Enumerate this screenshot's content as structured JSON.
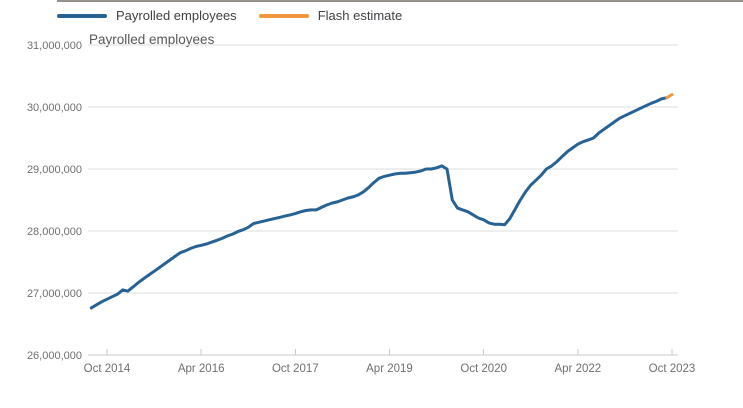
{
  "chart_data": {
    "type": "line",
    "title": "Payrolled employees",
    "x_axis": {
      "start_month": "Jul 2014",
      "tick_labels": [
        "Oct 2014",
        "Apr 2016",
        "Oct 2017",
        "Apr 2019",
        "Oct 2020",
        "Apr 2022",
        "Oct 2023"
      ],
      "tick_indices": [
        3,
        21,
        39,
        57,
        75,
        93,
        111
      ]
    },
    "y_axis": {
      "min": 26000000,
      "max": 31000000,
      "tick_values": [
        26000000,
        27000000,
        28000000,
        29000000,
        30000000,
        31000000
      ],
      "tick_labels": [
        "26,000,000",
        "27,000,000",
        "28,000,000",
        "29,000,000",
        "30,000,000",
        "31,000,000"
      ]
    },
    "grid": "horizontal",
    "legend_position": "top",
    "series": [
      {
        "name": "Payrolled employees",
        "color": "#266294",
        "start_index": 0,
        "values": [
          26760000,
          26810000,
          26860000,
          26900000,
          26940000,
          26980000,
          27050000,
          27030000,
          27100000,
          27170000,
          27230000,
          27290000,
          27350000,
          27410000,
          27470000,
          27530000,
          27590000,
          27650000,
          27680000,
          27720000,
          27750000,
          27770000,
          27790000,
          27820000,
          27850000,
          27880000,
          27920000,
          27950000,
          27990000,
          28020000,
          28060000,
          28120000,
          28140000,
          28160000,
          28180000,
          28200000,
          28220000,
          28240000,
          28260000,
          28280000,
          28310000,
          28330000,
          28340000,
          28340000,
          28380000,
          28420000,
          28450000,
          28470000,
          28500000,
          28530000,
          28550000,
          28580000,
          28630000,
          28700000,
          28780000,
          28850000,
          28880000,
          28900000,
          28920000,
          28930000,
          28930000,
          28940000,
          28950000,
          28970000,
          29000000,
          29000000,
          29020000,
          29050000,
          29000000,
          28500000,
          28370000,
          28340000,
          28310000,
          28260000,
          28210000,
          28180000,
          28130000,
          28110000,
          28110000,
          28100000,
          28200000,
          28350000,
          28500000,
          28630000,
          28740000,
          28820000,
          28900000,
          29000000,
          29050000,
          29120000,
          29200000,
          29280000,
          29340000,
          29400000,
          29440000,
          29470000,
          29500000,
          29580000,
          29640000,
          29700000,
          29760000,
          29820000,
          29860000,
          29900000,
          29940000,
          29980000,
          30020000,
          30060000,
          30090000,
          30130000,
          30150000
        ]
      },
      {
        "name": "Flash estimate",
        "color": "#f1953e",
        "start_index": 110,
        "values": [
          30150000,
          30200000
        ]
      }
    ]
  }
}
